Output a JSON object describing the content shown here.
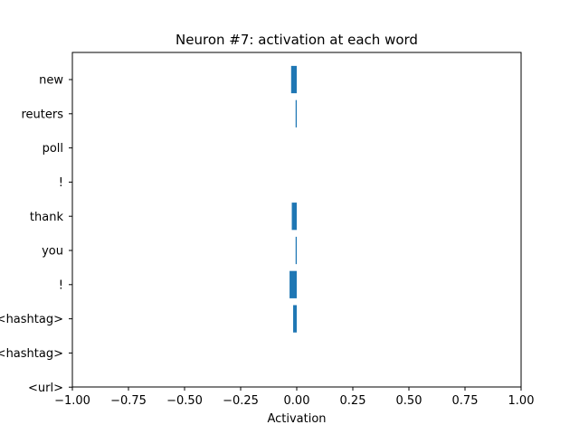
{
  "chart_data": {
    "type": "bar",
    "orientation": "horizontal",
    "title": "Neuron #7: activation at each word",
    "xlabel": "Activation",
    "ylabel": "",
    "xlim": [
      -1.0,
      1.0
    ],
    "x_ticks": [
      "−1.00",
      "−0.75",
      "−0.50",
      "−0.25",
      "0.00",
      "0.25",
      "0.50",
      "0.75",
      "1.00"
    ],
    "x_tick_values": [
      -1.0,
      -0.75,
      -0.5,
      -0.25,
      0.0,
      0.25,
      0.5,
      0.75,
      1.0
    ],
    "categories": [
      "new",
      "reuters",
      "poll",
      "!",
      "thank",
      "you",
      "!",
      "<hashtag>",
      "<hashtag>",
      "<url>"
    ],
    "values": [
      -0.025,
      -0.005,
      0.0,
      0.0,
      -0.022,
      -0.005,
      -0.032,
      -0.016,
      0.0,
      0.0
    ],
    "bar_color": "#1f77b4",
    "grid": false,
    "legend": "none"
  }
}
